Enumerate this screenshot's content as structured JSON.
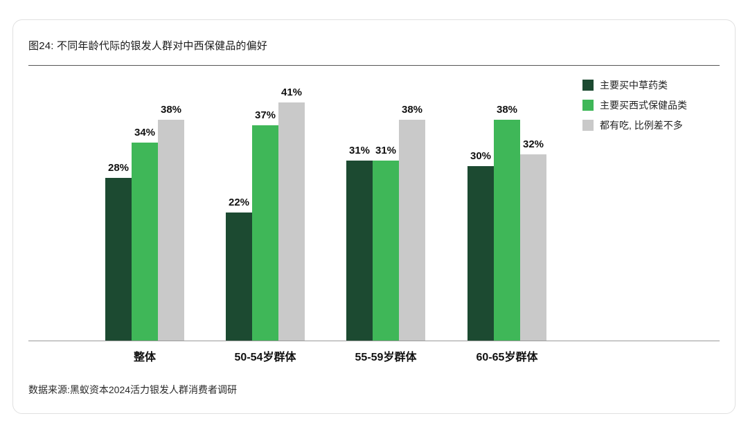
{
  "chart_data": {
    "type": "bar",
    "title": "图24: 不同年龄代际的银发人群对中西保健品的偏好",
    "categories": [
      "整体",
      "50-54岁群体",
      "55-59岁群体",
      "60-65岁群体"
    ],
    "series": [
      {
        "key": "herbal",
        "name": "主要买中草药类",
        "color": "#1c4a31",
        "values": [
          28,
          22,
          31,
          30
        ]
      },
      {
        "key": "western",
        "name": "主要买西式保健品类",
        "color": "#3fb758",
        "values": [
          34,
          37,
          31,
          38
        ]
      },
      {
        "key": "both",
        "name": "都有吃, 比例差不多",
        "color": "#c9c9c9",
        "values": [
          38,
          41,
          38,
          32
        ]
      }
    ],
    "value_suffix": "%",
    "ylim": [
      0,
      45
    ],
    "grid": false,
    "legend_position": "top-right",
    "source": "数据来源:黑蚁资本2024活力银发人群消费者调研"
  }
}
